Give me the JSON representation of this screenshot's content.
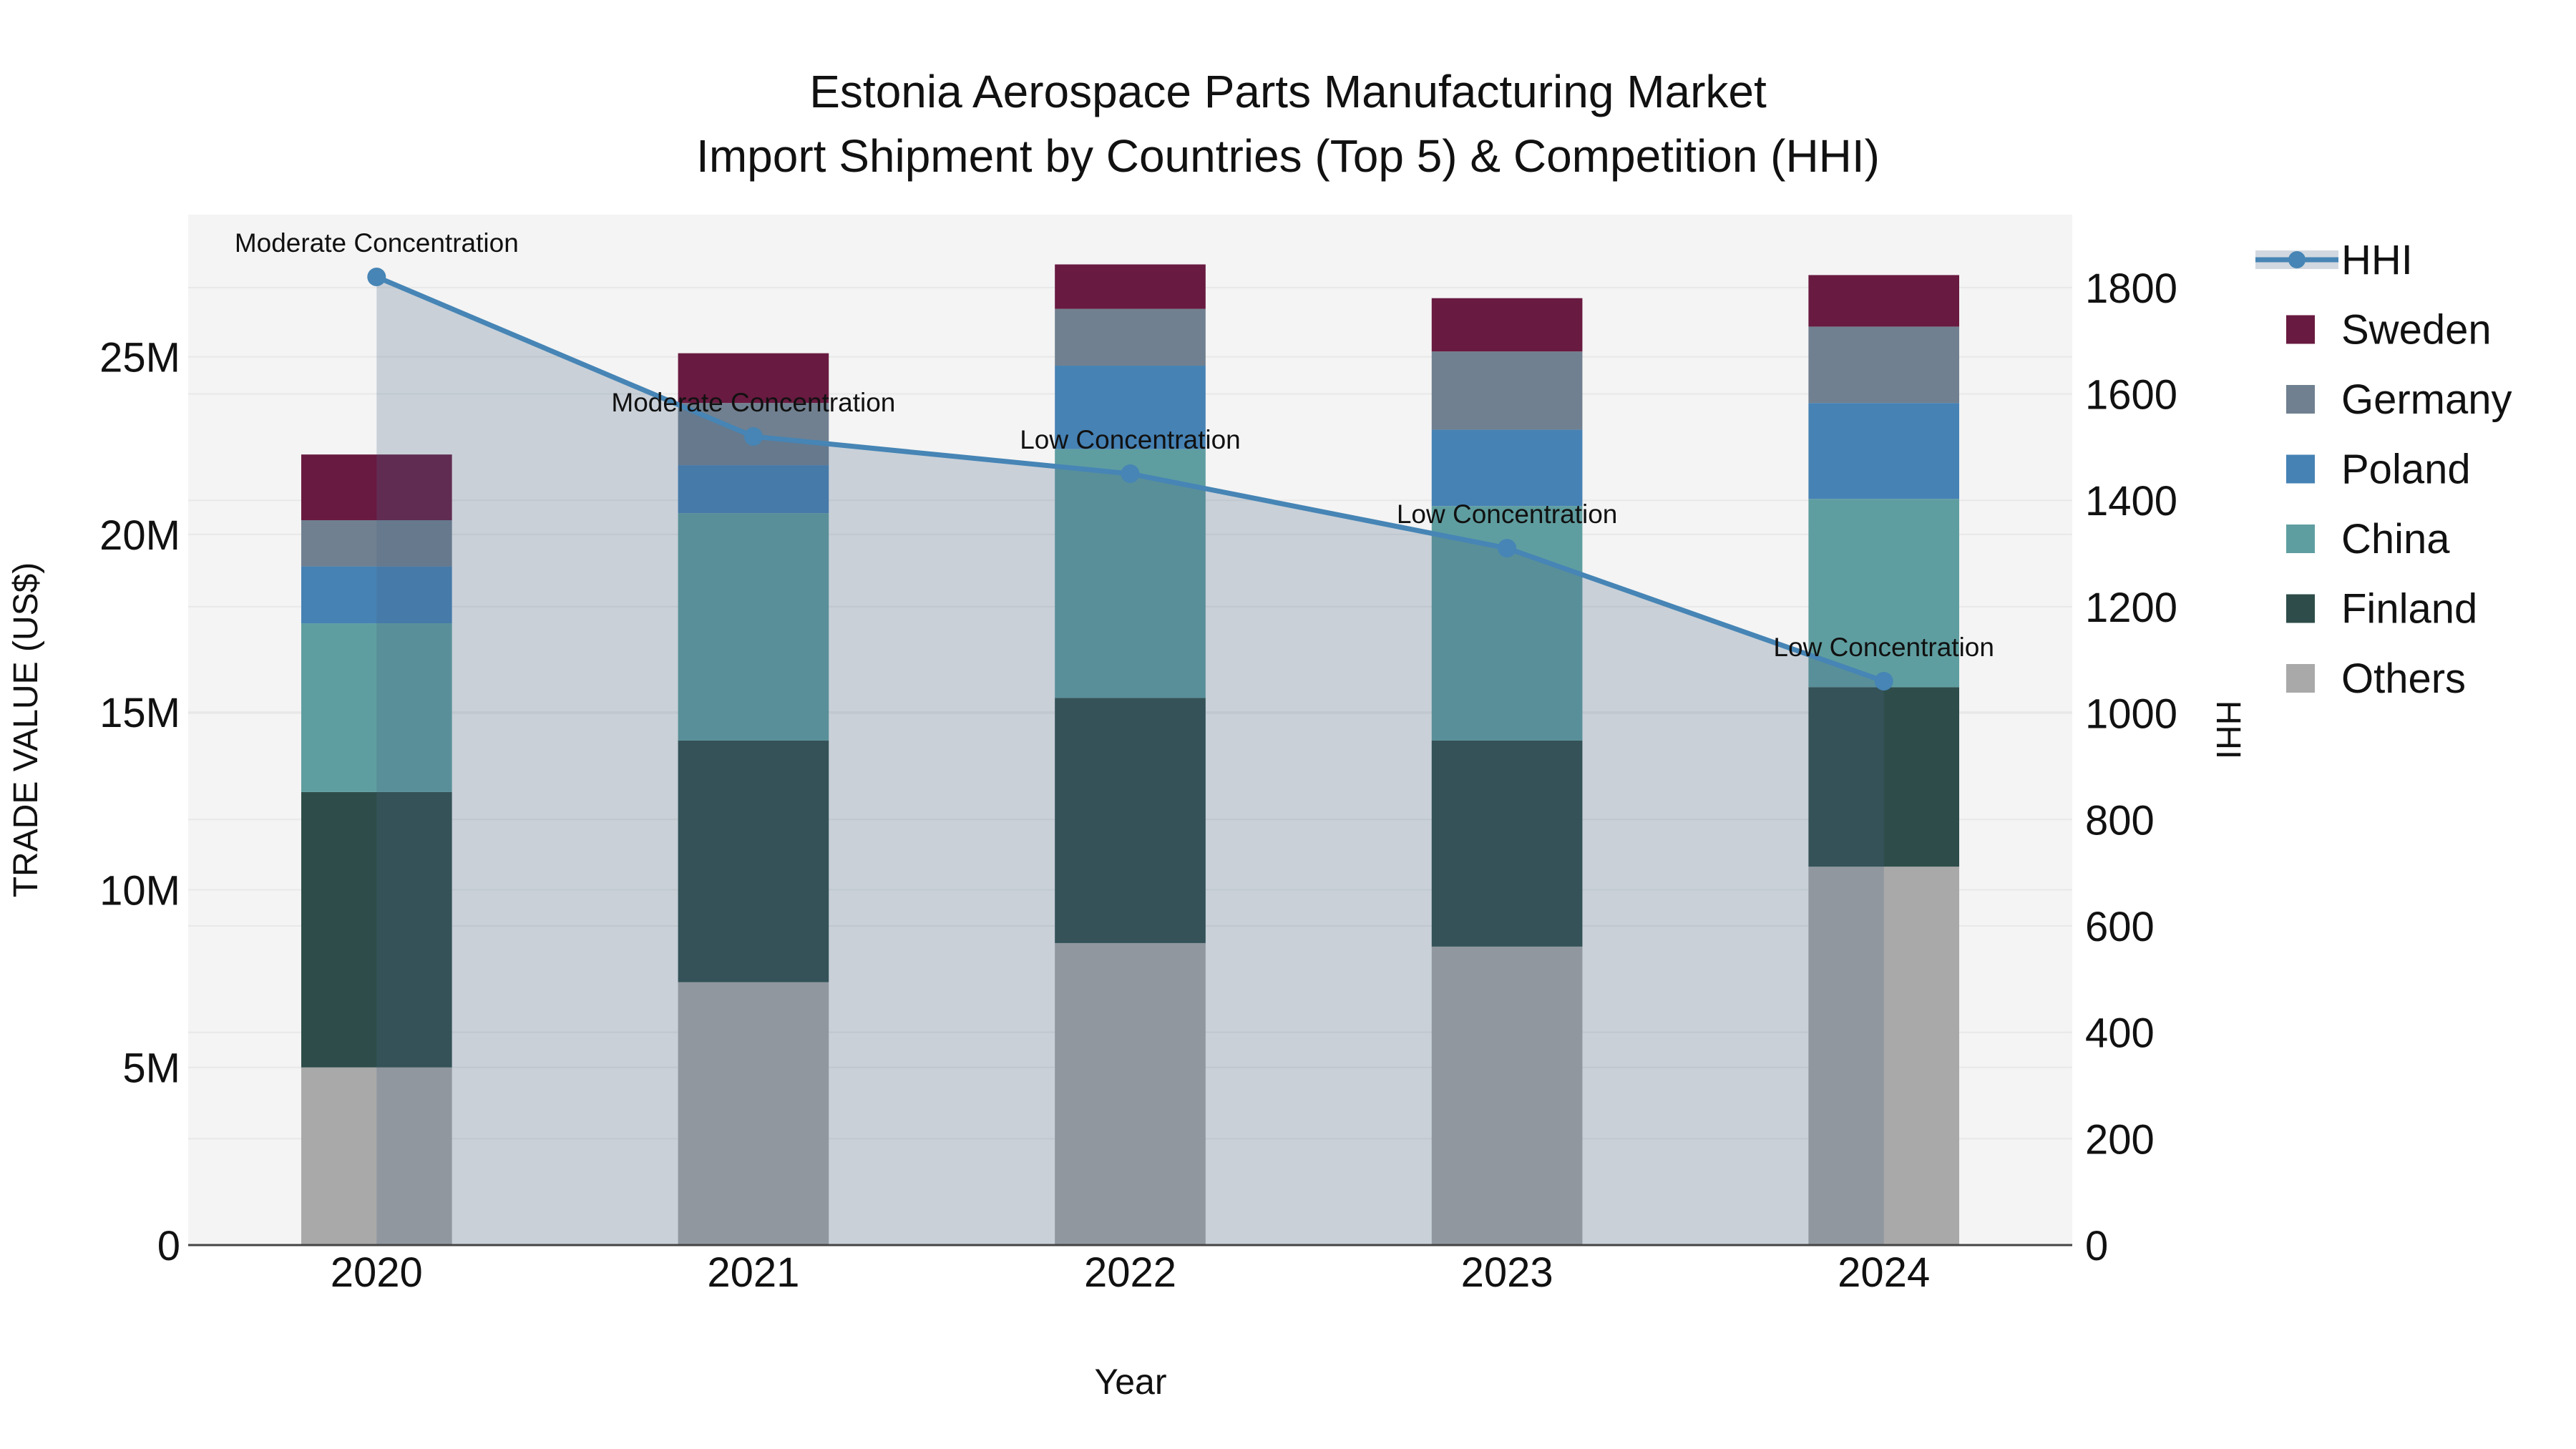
{
  "chart_data": {
    "type": "bar",
    "stacked": true,
    "title_line1": "Estonia Aerospace Parts Manufacturing Market",
    "title_line2": "Import Shipment by Countries (Top 5) & Competition (HHI)",
    "xlabel": "Year",
    "categories": [
      "2020",
      "2021",
      "2022",
      "2023",
      "2024"
    ],
    "y_left": {
      "label": "TRADE VALUE (US$)",
      "tick_values": [
        0,
        5,
        10,
        15,
        20,
        25
      ],
      "tick_labels": [
        "0",
        "5M",
        "10M",
        "15M",
        "20M",
        "25M"
      ],
      "max": 29,
      "unit": "millions of US$"
    },
    "y_right": {
      "label": "HHI",
      "tick_values": [
        0,
        200,
        400,
        600,
        800,
        1000,
        1200,
        1400,
        1600,
        1800
      ],
      "tick_labels": [
        "0",
        "200",
        "400",
        "600",
        "800",
        "1000",
        "1200",
        "1400",
        "1600",
        "1800"
      ],
      "max": 1937
    },
    "series": [
      {
        "name": "Others",
        "color_key": "others",
        "values": [
          5.0,
          7.4,
          8.5,
          8.4,
          10.65
        ]
      },
      {
        "name": "Finland",
        "color_key": "finland",
        "values": [
          7.75,
          6.8,
          6.9,
          5.8,
          5.05
        ]
      },
      {
        "name": "China",
        "color_key": "china",
        "values": [
          4.75,
          6.4,
          7.0,
          6.6,
          5.3
        ]
      },
      {
        "name": "Poland",
        "color_key": "poland",
        "values": [
          1.6,
          1.35,
          2.35,
          2.15,
          2.7
        ]
      },
      {
        "name": "Germany",
        "color_key": "germany",
        "values": [
          1.3,
          1.75,
          1.6,
          2.2,
          2.15
        ]
      },
      {
        "name": "Sweden",
        "color_key": "sweden",
        "values": [
          1.85,
          1.4,
          1.25,
          1.5,
          1.45
        ]
      }
    ],
    "stack_totals": [
      22.25,
      25.1,
      27.6,
      26.65,
      27.3
    ],
    "line": {
      "name": "HHI",
      "values": [
        1820,
        1520,
        1450,
        1310,
        1060
      ]
    },
    "annotations": [
      {
        "year": "2020",
        "text": "Moderate Concentration"
      },
      {
        "year": "2021",
        "text": "Moderate Concentration"
      },
      {
        "year": "2022",
        "text": "Low Concentration"
      },
      {
        "year": "2023",
        "text": "Low Concentration"
      },
      {
        "year": "2024",
        "text": "Low Concentration"
      }
    ],
    "legend": {
      "position": "right",
      "items": [
        {
          "label": "HHI",
          "marker": "line"
        },
        {
          "label": "Sweden",
          "marker": "sweden"
        },
        {
          "label": "Germany",
          "marker": "germany"
        },
        {
          "label": "Poland",
          "marker": "poland"
        },
        {
          "label": "China",
          "marker": "china"
        },
        {
          "label": "Finland",
          "marker": "finland"
        },
        {
          "label": "Others",
          "marker": "others"
        }
      ]
    },
    "colors": {
      "sweden": "#691a40",
      "germany": "#708090",
      "poland": "#4682b4",
      "china": "#5f9ea0",
      "finland": "#2e4d4a",
      "others": "#a9a9a9",
      "hhi_line": "#4685b5",
      "area_fill": "rgba(70,100,130,0.25)",
      "plot_bg": "#f4f4f4",
      "grid": "#e8e8e8",
      "axis_line": "#444444",
      "text": "#111111"
    },
    "layout_hints": {
      "grid": true,
      "bar_width_frac": 0.4,
      "area_under_line": true
    }
  }
}
